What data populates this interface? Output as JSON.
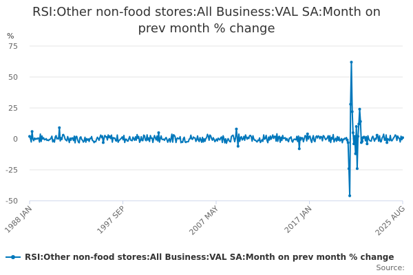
{
  "title_lines": [
    "RSI:Other non-food stores:All Business:VAL SA:Month on",
    "prev month % change"
  ],
  "source_text": "Source:",
  "colors": {
    "series": "#0077bb",
    "grid": "#e6e6e6",
    "axis": "#ccd6eb"
  },
  "chart_data": {
    "type": "line",
    "title": "RSI:Other non-food stores:All Business:VAL SA:Month on prev month % change",
    "unit_label": "%",
    "ylim": [
      -50,
      75
    ],
    "yticks": [
      75,
      50,
      25,
      0,
      -25,
      -50
    ],
    "x_start": "1988-01",
    "x_end": "2025-08",
    "xtick_labels": [
      "1988 JAN",
      "1997 SEP",
      "2007 MAY",
      "2017 JAN",
      "2025 AUG"
    ],
    "grid": true,
    "legend_position": "bottom-left",
    "series": [
      {
        "name": "RSI:Other non-food stores:All Business:VAL SA:Month on prev month % change",
        "anchors": [
          {
            "x": "1988-01",
            "y": 2
          },
          {
            "x": "1988-04",
            "y": 6
          },
          {
            "x": "1991-01",
            "y": 9
          },
          {
            "x": "1995-06",
            "y": -3
          },
          {
            "x": "2001-01",
            "y": 5
          },
          {
            "x": "2008-11",
            "y": 8
          },
          {
            "x": "2009-01",
            "y": -6
          },
          {
            "x": "2015-03",
            "y": -8
          },
          {
            "x": "2016-01",
            "y": 4
          },
          {
            "x": "2020-01",
            "y": -1
          },
          {
            "x": "2020-02",
            "y": -3
          },
          {
            "x": "2020-03",
            "y": -24
          },
          {
            "x": "2020-04",
            "y": -46
          },
          {
            "x": "2020-05",
            "y": 28
          },
          {
            "x": "2020-06",
            "y": 62
          },
          {
            "x": "2020-07",
            "y": 22
          },
          {
            "x": "2020-08",
            "y": 5
          },
          {
            "x": "2020-09",
            "y": -4
          },
          {
            "x": "2020-10",
            "y": 2
          },
          {
            "x": "2020-11",
            "y": -12
          },
          {
            "x": "2020-12",
            "y": 10
          },
          {
            "x": "2021-01",
            "y": -24
          },
          {
            "x": "2021-02",
            "y": 2
          },
          {
            "x": "2021-03",
            "y": 12
          },
          {
            "x": "2021-04",
            "y": 24
          },
          {
            "x": "2021-05",
            "y": 14
          },
          {
            "x": "2021-06",
            "y": -3
          },
          {
            "x": "2021-07",
            "y": -2
          },
          {
            "x": "2021-08",
            "y": 1
          },
          {
            "x": "2022-01",
            "y": -4
          },
          {
            "x": "2023-01",
            "y": 3
          },
          {
            "x": "2024-01",
            "y": -3
          },
          {
            "x": "2025-08",
            "y": 1
          }
        ]
      }
    ]
  }
}
